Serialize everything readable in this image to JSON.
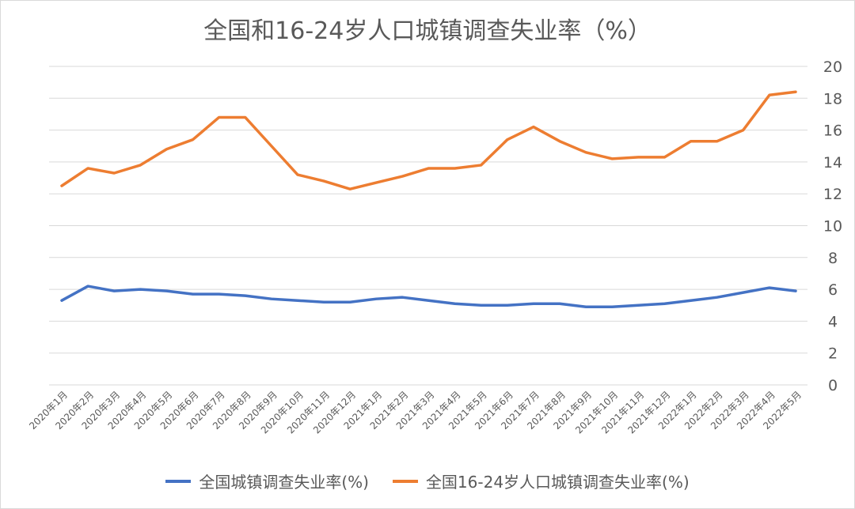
{
  "chart_data": {
    "type": "line",
    "title": "全国和16-24岁人口城镇调查失业率（%）",
    "xlabel": "",
    "ylabel": "",
    "ylim": [
      0,
      20
    ],
    "yticks": [
      0,
      2,
      4,
      6,
      8,
      10,
      12,
      14,
      16,
      18,
      20
    ],
    "grid": true,
    "y_axis_side": "right",
    "legend_position": "bottom",
    "categories": [
      "2020年1月",
      "2020年2月",
      "2020年3月",
      "2020年4月",
      "2020年5月",
      "2020年6月",
      "2020年7月",
      "2020年8月",
      "2020年9月",
      "2020年10月",
      "2020年11月",
      "2020年12月",
      "2021年1月",
      "2021年2月",
      "2021年3月",
      "2021年4月",
      "2021年5月",
      "2021年6月",
      "2021年7月",
      "2021年8月",
      "2021年9月",
      "2021年10月",
      "2021年11月",
      "2021年12月",
      "2022年1月",
      "2022年2月",
      "2022年3月",
      "2022年4月",
      "2022年5月"
    ],
    "series": [
      {
        "name": "全国城镇调查失业率(%)",
        "color": "#4472c4",
        "values": [
          5.3,
          6.2,
          5.9,
          6.0,
          5.9,
          5.7,
          5.7,
          5.6,
          5.4,
          5.3,
          5.2,
          5.2,
          5.4,
          5.5,
          5.3,
          5.1,
          5.0,
          5.0,
          5.1,
          5.1,
          4.9,
          4.9,
          5.0,
          5.1,
          5.3,
          5.5,
          5.8,
          6.1,
          5.9
        ]
      },
      {
        "name": "全国16-24岁人口城镇调查失业率(%)",
        "color": "#ed7d31",
        "values": [
          12.5,
          13.6,
          13.3,
          13.8,
          14.8,
          15.4,
          16.8,
          16.8,
          15.0,
          13.2,
          12.8,
          12.3,
          12.7,
          13.1,
          13.6,
          13.6,
          13.8,
          15.4,
          16.2,
          15.3,
          14.6,
          14.2,
          14.3,
          14.3,
          15.3,
          15.3,
          16.0,
          18.2,
          18.4
        ]
      }
    ]
  }
}
